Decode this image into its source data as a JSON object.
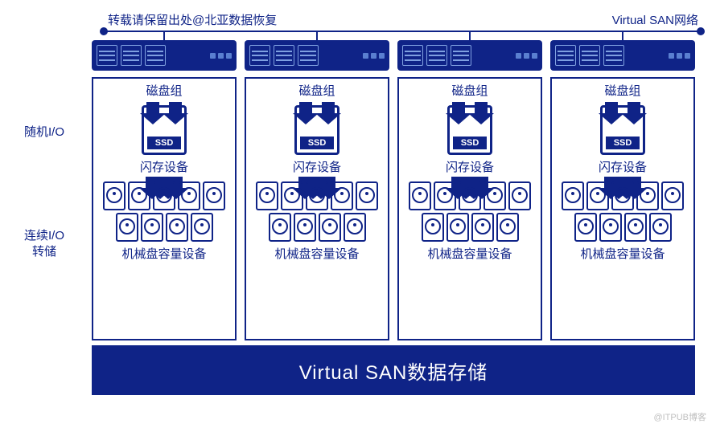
{
  "diagram": {
    "type": "infographic",
    "background_color": "#ffffff",
    "primary_color": "#0f2387",
    "font_family": "Microsoft YaHei",
    "header_left": "转载请保留出处@北亚数据恢复",
    "header_right": "Virtual SAN网络",
    "side_label_random_io": "随机I/O",
    "side_label_sequential_io_l1": "连续I/O",
    "side_label_sequential_io_l2": "转储",
    "datastore_label": "Virtual SAN数据存储",
    "watermark": "@ITPUB博客",
    "column_count": 4,
    "column": {
      "disk_group_title": "磁盘组",
      "ssd_label": "SSD",
      "flash_device_label": "闪存设备",
      "hdd_capacity_label": "机械盘容量设备",
      "arrow_color": "#0f2387",
      "border_color": "#0f2387",
      "hdd_row1_count": 5,
      "hdd_row2_count": 4
    },
    "label_fontsize": 15,
    "datastore_fontsize": 24
  }
}
